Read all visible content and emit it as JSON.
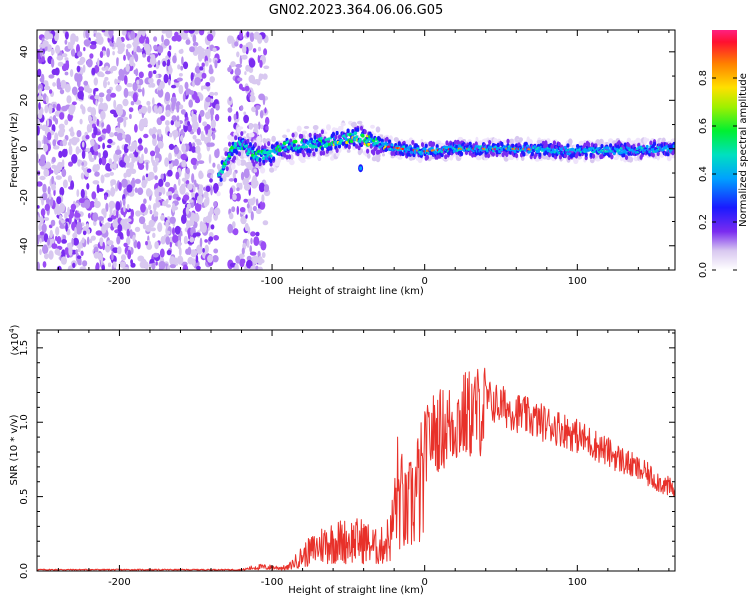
{
  "title": "GN02.2023.364.06.06.G05",
  "chart_data": [
    {
      "type": "heatmap",
      "xlabel": "Height of straight line (km)",
      "ylabel": "Frequency (Hz)",
      "xlim": [
        -254,
        164
      ],
      "ylim": [
        -50,
        49
      ],
      "xticks": [
        -200,
        -100,
        0,
        100
      ],
      "yticks": [
        -40,
        -20,
        0,
        20,
        40
      ],
      "colorbar": {
        "label": "Normalized spectral amplitude",
        "range": [
          0,
          1
        ],
        "ticks": [
          "0.0",
          "0.2",
          "0.4",
          "0.6",
          "0.8"
        ]
      },
      "ridge": [
        {
          "x": -135,
          "f": -12
        },
        {
          "x": -128,
          "f": -2
        },
        {
          "x": -120,
          "f": 2
        },
        {
          "x": -110,
          "f": -3
        },
        {
          "x": -100,
          "f": -2
        },
        {
          "x": -90,
          "f": 1
        },
        {
          "x": -75,
          "f": 2
        },
        {
          "x": -60,
          "f": 3
        },
        {
          "x": -45,
          "f": 5
        },
        {
          "x": -35,
          "f": 3
        },
        {
          "x": -25,
          "f": 1
        },
        {
          "x": -15,
          "f": 0
        },
        {
          "x": 0,
          "f": -1
        },
        {
          "x": 20,
          "f": 0
        },
        {
          "x": 60,
          "f": 0
        },
        {
          "x": 100,
          "f": -1
        },
        {
          "x": 164,
          "f": 0
        }
      ]
    },
    {
      "type": "line",
      "xlabel": "Height of straight line (km)",
      "ylabel": "SNR (10 * v/v)",
      "yscale_label": "(x10",
      "yscale_exp": "4",
      "yscale_close": ")",
      "xlim": [
        -254,
        164
      ],
      "ylim": [
        0,
        1.62
      ],
      "xticks": [
        -200,
        -100,
        0,
        100
      ],
      "yticks": [
        "0.0",
        "0.5",
        "1.0",
        "1.5"
      ],
      "color": "#e8312a",
      "envelope": [
        {
          "x": -254,
          "y": 0.01
        },
        {
          "x": -120,
          "y": 0.01
        },
        {
          "x": -110,
          "y": 0.04
        },
        {
          "x": -90,
          "y": 0.03
        },
        {
          "x": -80,
          "y": 0.15
        },
        {
          "x": -65,
          "y": 0.28
        },
        {
          "x": -50,
          "y": 0.3
        },
        {
          "x": -40,
          "y": 0.3
        },
        {
          "x": -30,
          "y": 0.22
        },
        {
          "x": -22,
          "y": 0.35
        },
        {
          "x": -18,
          "y": 0.8
        },
        {
          "x": -12,
          "y": 0.55
        },
        {
          "x": -5,
          "y": 0.8
        },
        {
          "x": 5,
          "y": 1.0
        },
        {
          "x": 15,
          "y": 1.05
        },
        {
          "x": 25,
          "y": 1.12
        },
        {
          "x": 40,
          "y": 1.18
        },
        {
          "x": 55,
          "y": 1.12
        },
        {
          "x": 70,
          "y": 1.05
        },
        {
          "x": 90,
          "y": 0.98
        },
        {
          "x": 110,
          "y": 0.88
        },
        {
          "x": 130,
          "y": 0.76
        },
        {
          "x": 150,
          "y": 0.64
        },
        {
          "x": 164,
          "y": 0.55
        }
      ]
    }
  ]
}
